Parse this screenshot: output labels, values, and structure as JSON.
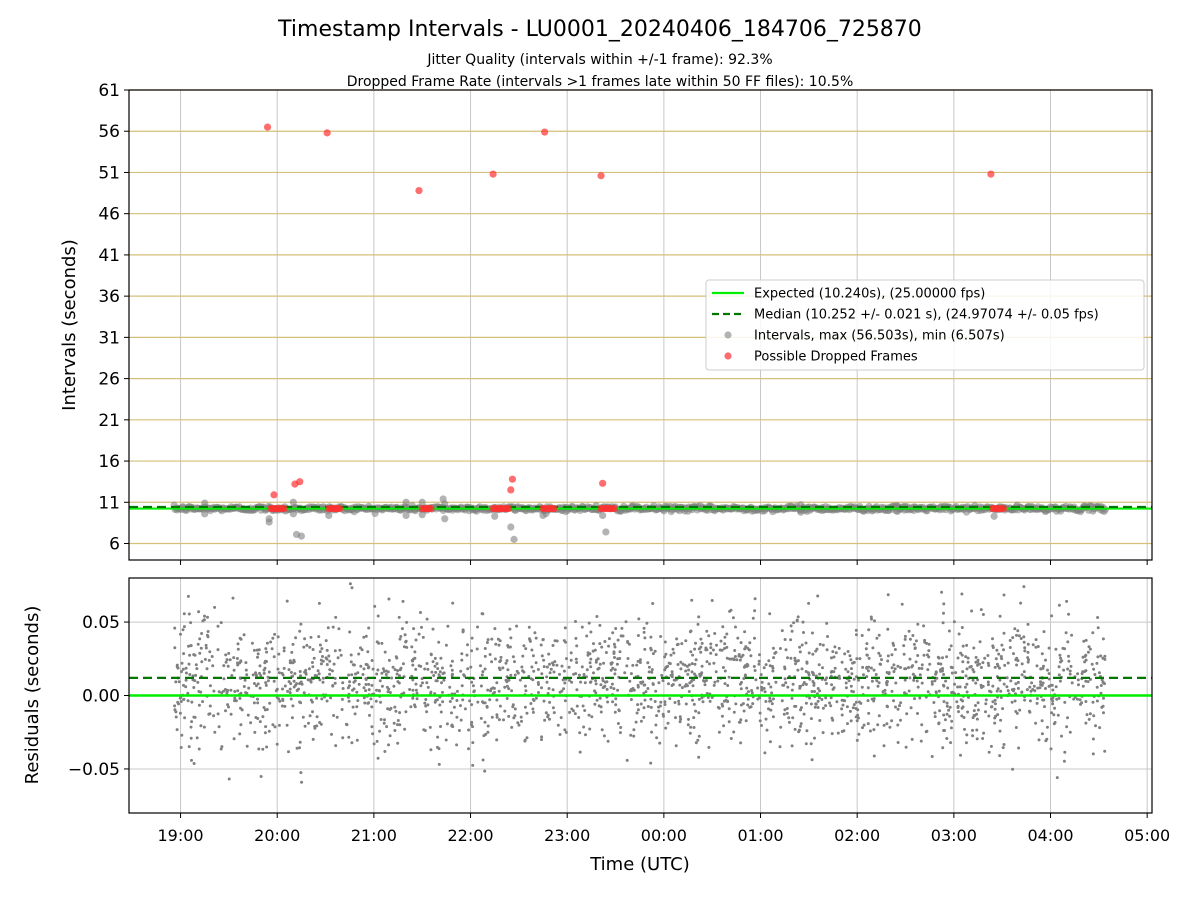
{
  "title": "Timestamp Intervals - LU0001_20240406_184706_725870",
  "subtitle_1": "Jitter Quality (intervals within +/-1 frame): 92.3%",
  "subtitle_2": "Dropped Frame Rate (intervals >1 frames late within 50 FF files): 10.5%",
  "colors": {
    "expected": "#00ee00",
    "median": "#007700",
    "intervals": "#808080",
    "dropped": "#ff3030",
    "hgrid_top": "#d6bf78",
    "grid": "#c8c8c8"
  },
  "chart_data": [
    {
      "type": "scatter",
      "panel": "intervals",
      "xlabel": "",
      "ylabel": "Intervals (seconds)",
      "x_range": [
        "18:28",
        "05:03"
      ],
      "ylim": [
        4,
        61
      ],
      "yticks": [
        "6",
        "11",
        "16",
        "21",
        "26",
        "31",
        "36",
        "41",
        "46",
        "51",
        "56",
        "61"
      ],
      "grid": true,
      "legend_placement": "center-right",
      "legend": [
        "Expected (10.240s), (25.00000 fps)",
        "Median (10.252 +/- 0.021 s), (24.97074 +/- 0.05 fps)",
        "Intervals, max (56.503s), min (6.507s)",
        "Possible Dropped Frames"
      ],
      "series": [
        {
          "name": "Expected (10.240s), (25.00000 fps)",
          "kind": "hline",
          "y": 10.24
        },
        {
          "name": "Median (10.252 +/- 0.021 s), (24.97074 +/- 0.05 fps)",
          "kind": "hline",
          "y": 10.252
        },
        {
          "name": "Intervals, max (56.503s), min (6.507s)",
          "kind": "points",
          "band": {
            "x": [
              "18:56",
              "04:34"
            ],
            "y_center": 10.24,
            "y_spread": 0.15
          },
          "outliers": [
            [
              "19:15",
              10.9
            ],
            [
              "19:15",
              9.6
            ],
            [
              "19:55",
              9.0
            ],
            [
              "19:55",
              8.6
            ],
            [
              "20:10",
              11.0
            ],
            [
              "20:10",
              9.6
            ],
            [
              "20:12",
              7.1
            ],
            [
              "20:15",
              6.9
            ],
            [
              "20:32",
              9.4
            ],
            [
              "21:20",
              11.0
            ],
            [
              "21:20",
              9.4
            ],
            [
              "21:30",
              9.5
            ],
            [
              "21:30",
              11.0
            ],
            [
              "21:43",
              11.4
            ],
            [
              "21:44",
              9.0
            ],
            [
              "21:44",
              10.8
            ],
            [
              "22:15",
              9.3
            ],
            [
              "22:25",
              8.0
            ],
            [
              "22:27",
              6.5
            ],
            [
              "22:45",
              9.4
            ],
            [
              "23:18",
              10.6
            ],
            [
              "23:22",
              9.4
            ],
            [
              "23:24",
              7.4
            ],
            [
              "23:40",
              10.5
            ],
            [
              "01:25",
              10.7
            ],
            [
              "01:25",
              9.8
            ],
            [
              "02:25",
              10.5
            ],
            [
              "02:25",
              9.9
            ],
            [
              "03:25",
              9.3
            ]
          ]
        },
        {
          "name": "Possible Dropped Frames",
          "kind": "points",
          "clusters": [
            [
              "19:56",
              "20:05"
            ],
            [
              "20:32",
              "20:40"
            ],
            [
              "21:30",
              "21:36"
            ],
            [
              "22:14",
              "22:24"
            ],
            [
              "22:45",
              "22:52"
            ],
            [
              "23:21",
              "23:30"
            ],
            [
              "03:24",
              "03:31"
            ]
          ],
          "cluster_y": 10.24,
          "points": [
            [
              "19:54",
              56.5
            ],
            [
              "20:31",
              55.8
            ],
            [
              "21:28",
              48.8
            ],
            [
              "22:14",
              50.8
            ],
            [
              "22:46",
              55.9
            ],
            [
              "23:21",
              50.6
            ],
            [
              "03:23",
              50.8
            ],
            [
              "19:58",
              11.9
            ],
            [
              "20:11",
              13.2
            ],
            [
              "20:14",
              13.5
            ],
            [
              "22:25",
              12.5
            ],
            [
              "22:26",
              13.8
            ],
            [
              "23:22",
              13.3
            ]
          ]
        }
      ]
    },
    {
      "type": "scatter",
      "panel": "residuals",
      "xlabel": "Time (UTC)",
      "ylabel": "Residuals (seconds)",
      "x_range": [
        "18:28",
        "05:03"
      ],
      "ylim": [
        -0.08,
        0.08
      ],
      "yticks": [
        "0.05",
        "0.00",
        "−0.05"
      ],
      "xticks": [
        "19:00",
        "20:00",
        "21:00",
        "22:00",
        "23:00",
        "00:00",
        "01:00",
        "02:00",
        "03:00",
        "04:00",
        "05:00"
      ],
      "grid": true,
      "series": [
        {
          "kind": "hline",
          "y": 0.0
        },
        {
          "kind": "hline",
          "y": 0.012
        },
        {
          "kind": "points",
          "x": [
            "18:56",
            "04:34"
          ],
          "count": 2200,
          "mean": 0.01,
          "std": 0.022,
          "clip": [
            -0.08,
            0.08
          ]
        }
      ]
    }
  ]
}
